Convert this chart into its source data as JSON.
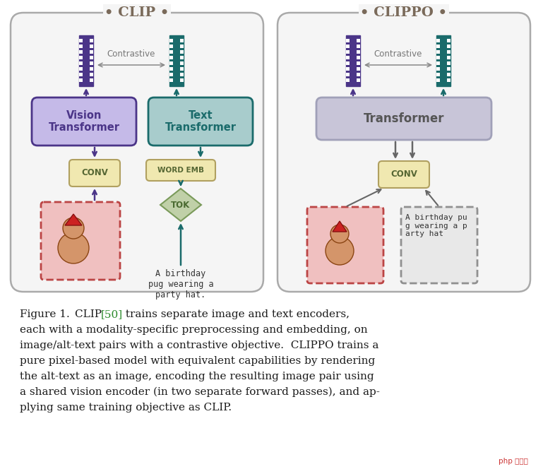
{
  "bg_color": "#ffffff",
  "fig_width": 7.69,
  "fig_height": 6.71,
  "clip_title": "• CLIP •",
  "clippo_title": "• CLIPPO •",
  "title_color": "#7a6a5a",
  "vision_transformer_label": "Vision\nTransformer",
  "text_transformer_label": "Text\nTransformer",
  "transformer_label": "Transformer",
  "conv_label": "CONV",
  "word_emb_label": "WORD EMB",
  "tok_label": "TOK",
  "contrastive_label": "Contrastive",
  "birthday_text_clip": "A birthday\npug wearing a\nparty hat.",
  "birthday_text_clippo": "A birthday pu\ng wearing a p\narty hat",
  "purple_color": "#4B3588",
  "purple_light": "#C5BAE8",
  "teal_color": "#1A6B6B",
  "teal_light": "#A8CCCC",
  "gray_box_face": "#C8C5D8",
  "gray_box_edge": "#A0A0B8",
  "yellow_light": "#F0E8B0",
  "yellow_edge": "#B0A060",
  "green_light": "#C0D0A8",
  "green_edge": "#7A9A5A",
  "pink_bg": "#F0C0C0",
  "img_edge": "#BB4444",
  "gray_text_bg": "#E4E4E4",
  "gray_text_edge": "#909090",
  "panel_face": "#F5F5F5",
  "panel_edge": "#AAAAAA",
  "arrow_gray": "#666666",
  "caption_black": "#1a1a1a",
  "clip_ref_color": "#2a8a2a",
  "watermark_text": "php 中文网",
  "watermark_color": "#cc3333"
}
